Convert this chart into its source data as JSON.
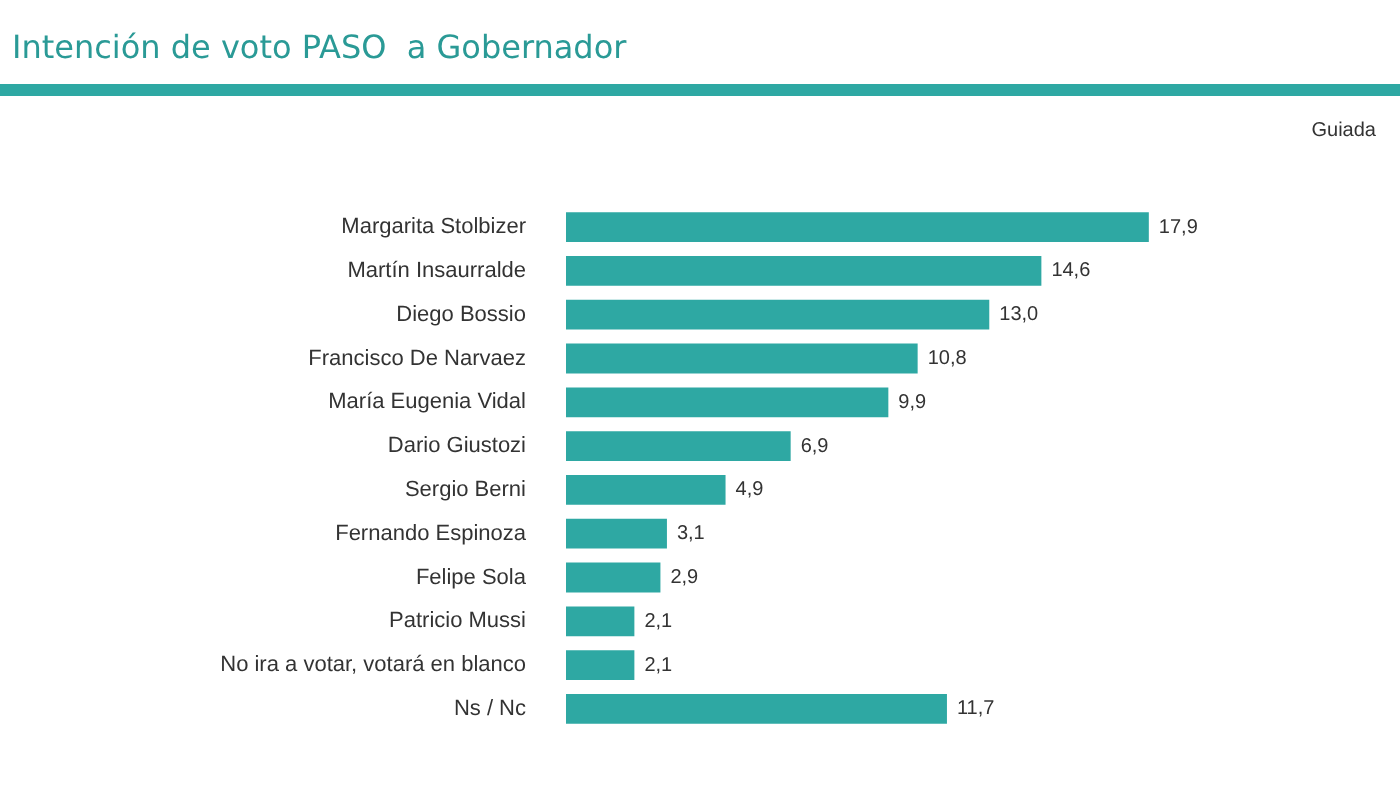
{
  "chart_data": {
    "type": "bar",
    "orientation": "horizontal",
    "title": "Intención de voto PASO  a Gobernador",
    "subtitle": "Guiada",
    "categories": [
      "Margarita Stolbizer",
      "Martín Insaurralde",
      "Diego Bossio",
      "Francisco De Narvaez",
      "María Eugenia Vidal",
      "Dario Giustozi",
      "Sergio Berni",
      "Fernando Espinoza",
      "Felipe Sola",
      "Patricio Mussi",
      "No ira a votar, votará en blanco",
      "Ns / Nc"
    ],
    "values": [
      17.9,
      14.6,
      13.0,
      10.8,
      9.9,
      6.9,
      4.9,
      3.1,
      2.9,
      2.1,
      2.1,
      11.7
    ],
    "value_labels": [
      "17,9",
      "14,6",
      "13,0",
      "10,8",
      "9,9",
      "6,9",
      "4,9",
      "3,1",
      "2,9",
      "2,1",
      "2,1",
      "11,7"
    ],
    "color": "#2ea8a3",
    "legend": false
  }
}
